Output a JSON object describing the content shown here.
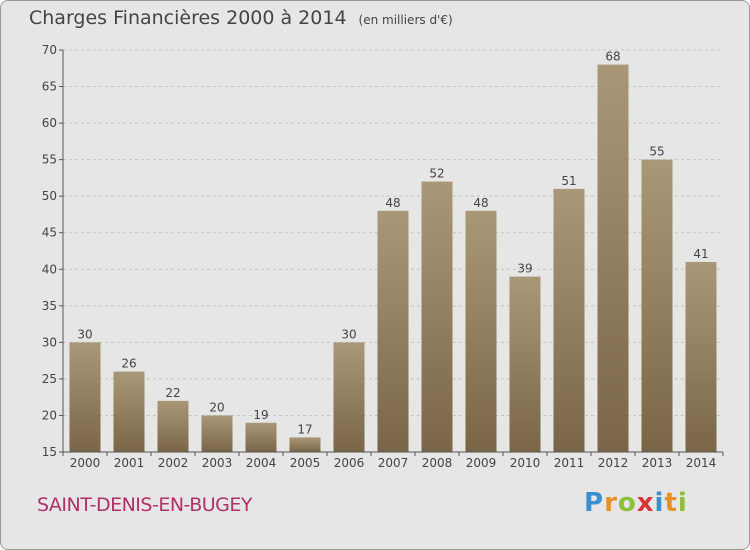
{
  "header": {
    "title": "Charges Financières 2000 à 2014",
    "unit_note": "(en milliers d'€)"
  },
  "footer": {
    "commune": "SAINT-DENIS-EN-BUGEY",
    "logo_text": "Proxiti"
  },
  "colors": {
    "bar_light": "#a99878",
    "bar_dark": "#7a6646",
    "commune_text": "#b0306a",
    "logo_p": "#3a8fd0",
    "logo_r": "#e8902a",
    "logo_o": "#8cbf3a",
    "logo_x": "#d8343a",
    "logo_i": "#3a8fd0",
    "logo_t": "#e8902a",
    "logo_i2": "#8cbf3a"
  },
  "chart_data": {
    "type": "bar",
    "title": "Charges Financières 2000 à 2014",
    "subtitle": "(en milliers d'€)",
    "xlabel": "",
    "ylabel": "",
    "categories": [
      "2000",
      "2001",
      "2002",
      "2003",
      "2004",
      "2005",
      "2006",
      "2007",
      "2008",
      "2009",
      "2010",
      "2011",
      "2012",
      "2013",
      "2014"
    ],
    "values": [
      30,
      26,
      22,
      20,
      19,
      17,
      30,
      48,
      52,
      48,
      39,
      51,
      68,
      55,
      41
    ],
    "ylim": [
      15,
      70
    ],
    "yticks": [
      15,
      20,
      25,
      30,
      35,
      40,
      45,
      50,
      55,
      60,
      65,
      70
    ],
    "grid": true,
    "data_labels": true
  }
}
